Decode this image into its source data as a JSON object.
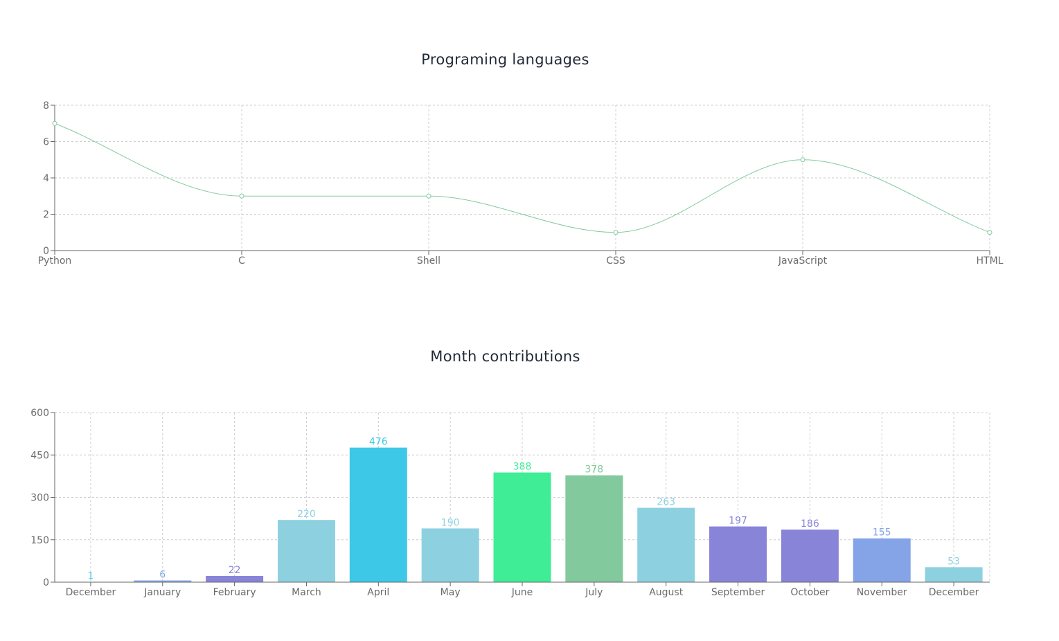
{
  "chart_data": [
    {
      "type": "line",
      "title": "Programing languages",
      "categories": [
        "Python",
        "C",
        "Shell",
        "CSS",
        "JavaScript",
        "HTML"
      ],
      "series": [
        {
          "values": [
            7,
            3,
            3,
            1,
            5,
            1
          ],
          "color": "#82ca9d"
        }
      ],
      "ylim": [
        0,
        8
      ],
      "yticks": [
        0,
        2,
        4,
        6,
        8
      ],
      "grid": true,
      "curve": "smooth"
    },
    {
      "type": "bar",
      "title": "Month contributions",
      "categories": [
        "December",
        "January",
        "February",
        "March",
        "April",
        "May",
        "June",
        "July",
        "August",
        "September",
        "October",
        "November",
        "December"
      ],
      "values": [
        1,
        6,
        22,
        220,
        476,
        190,
        388,
        378,
        263,
        197,
        186,
        155,
        53
      ],
      "colors": [
        "#3ec8e8",
        "#85a4e8",
        "#8884d8",
        "#8dd1e1",
        "#3ec8e8",
        "#8dd1e1",
        "#3fed96",
        "#82ca9d",
        "#8dd1e1",
        "#8884d8",
        "#8884d8",
        "#85a4e8",
        "#8dd1e1"
      ],
      "ylim": [
        0,
        600
      ],
      "yticks": [
        0,
        150,
        300,
        450,
        600
      ],
      "grid": true,
      "data_labels": true
    }
  ]
}
